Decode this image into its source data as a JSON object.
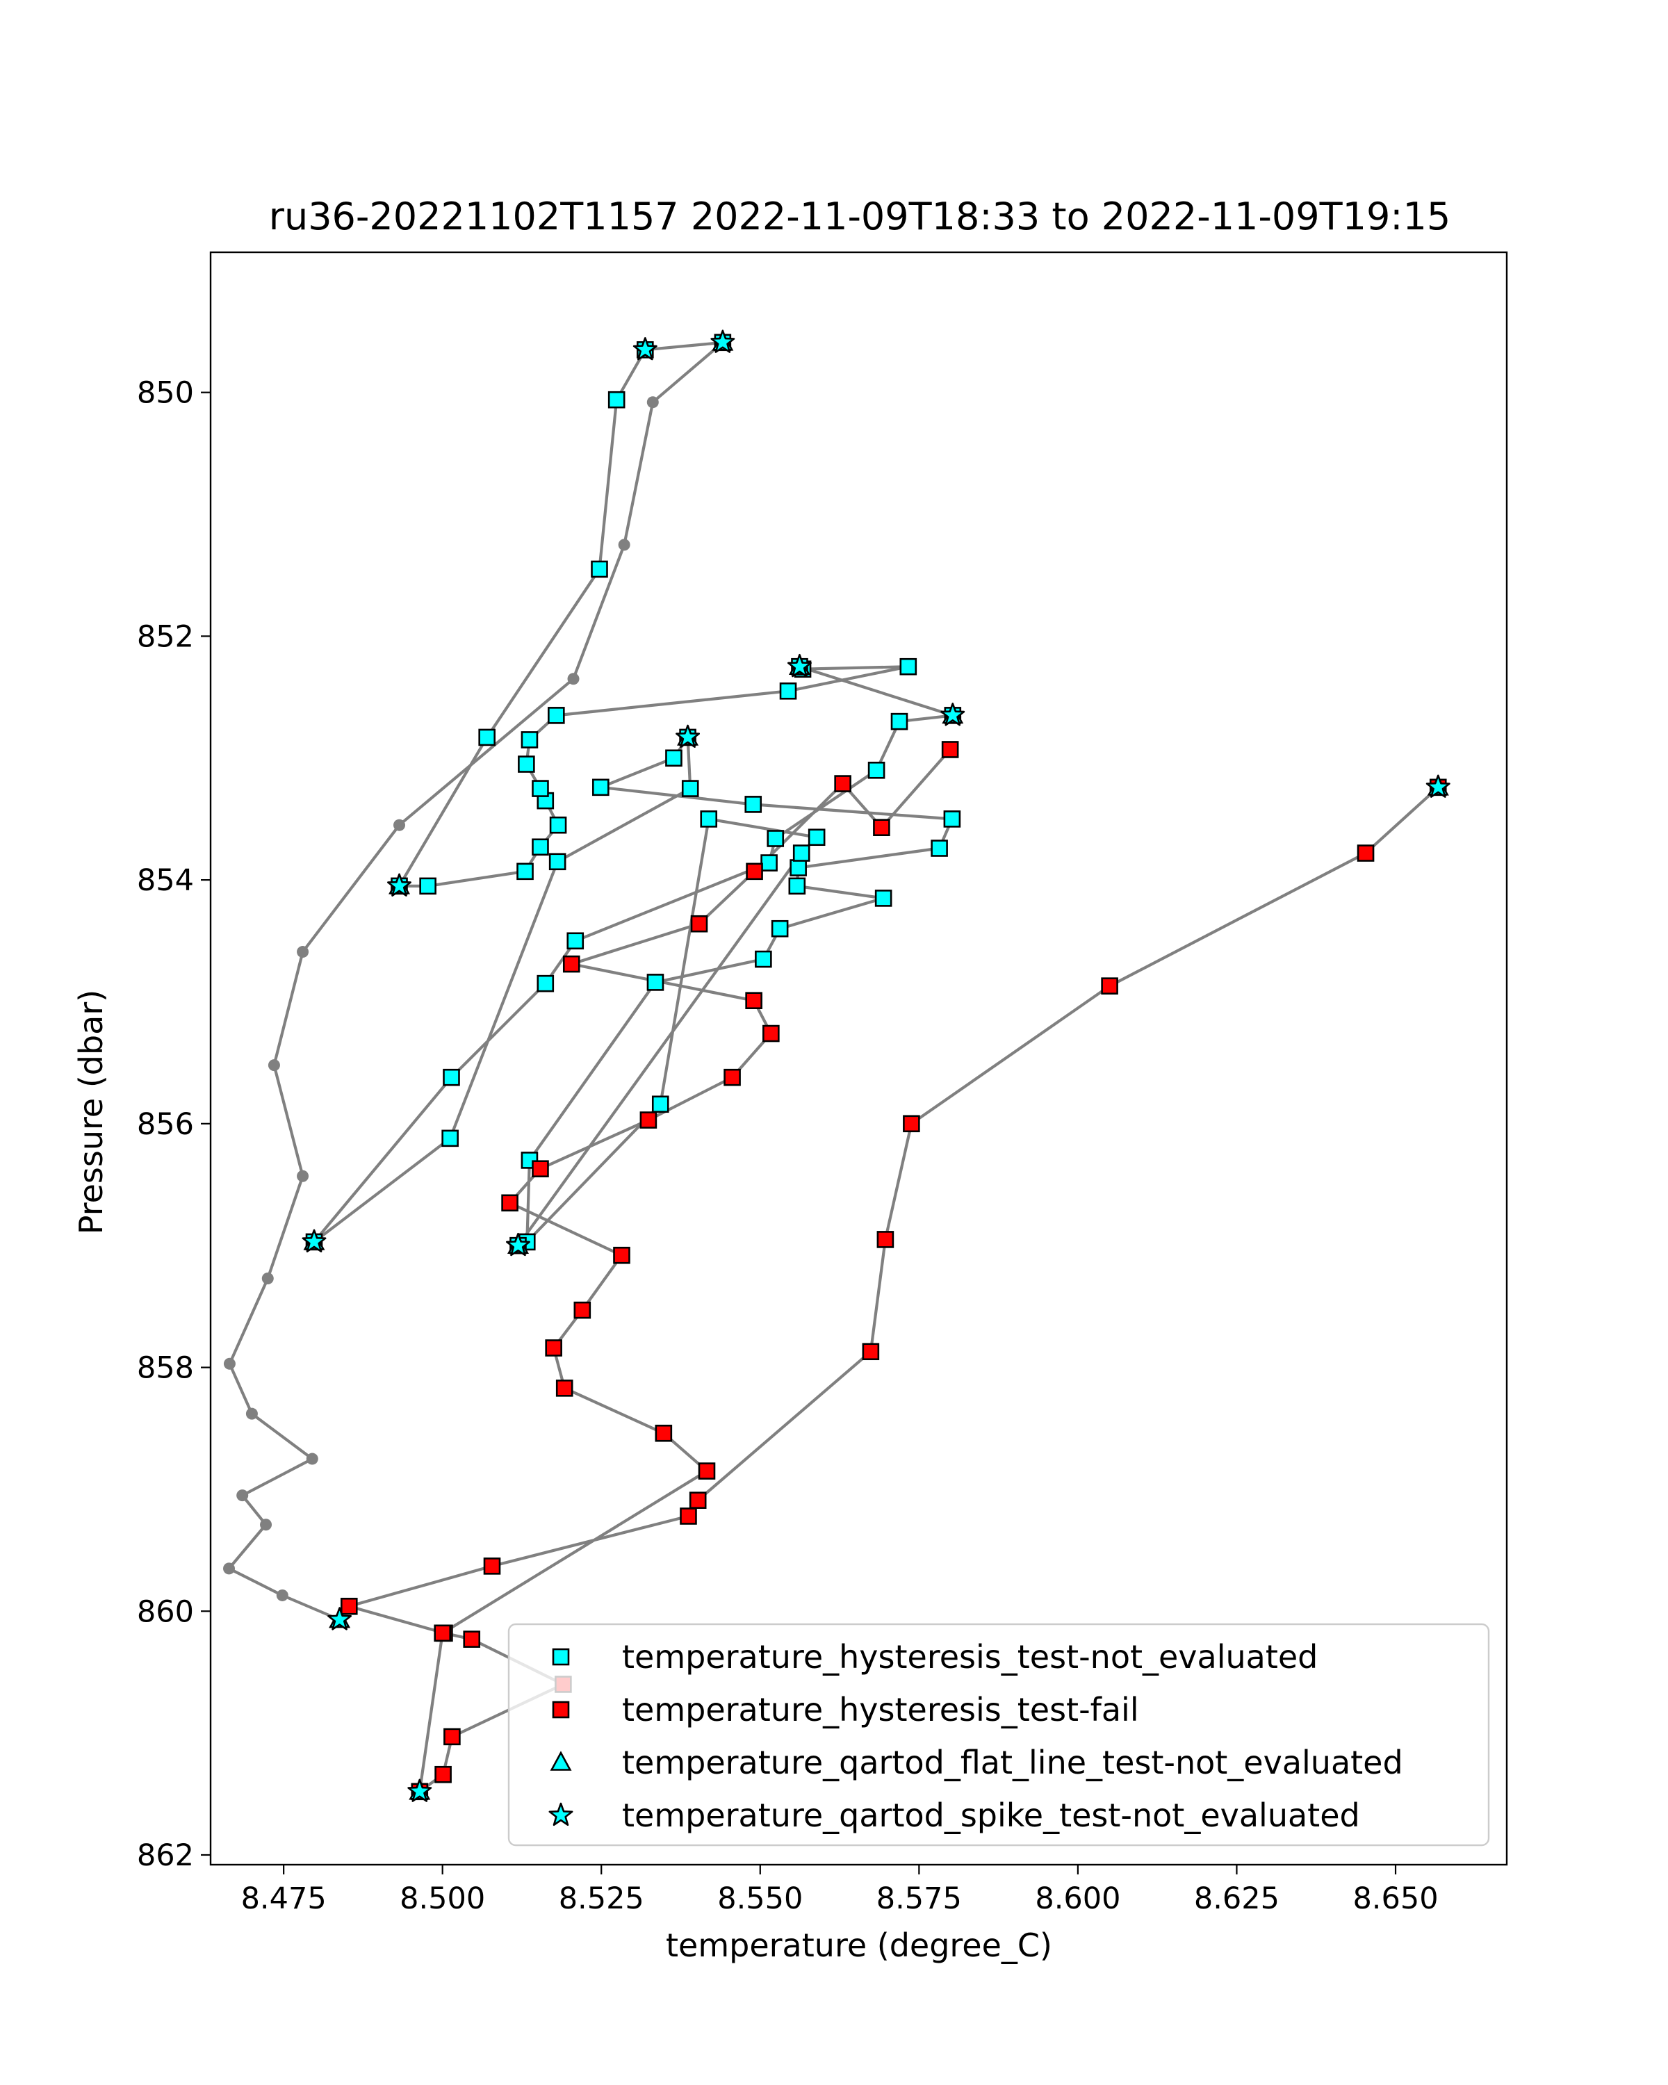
{
  "chart_data": {
    "type": "scatter",
    "title": "ru36-20221102T1157 2022-11-09T18:33 to 2022-11-09T19:15",
    "xlabel": "temperature (degree_C)",
    "ylabel": "Pressure (dbar)",
    "xlim": [
      8.4635,
      8.6675
    ],
    "ylim": [
      862.08,
      848.85
    ],
    "y_inverted": true,
    "x_ticks": [
      8.475,
      8.5,
      8.525,
      8.55,
      8.575,
      8.6,
      8.625,
      8.65
    ],
    "x_tick_labels": [
      "8.475",
      "8.500",
      "8.525",
      "8.550",
      "8.575",
      "8.600",
      "8.625",
      "8.650"
    ],
    "y_ticks": [
      850,
      852,
      854,
      856,
      858,
      860,
      862
    ],
    "y_tick_labels": [
      "850",
      "852",
      "854",
      "856",
      "858",
      "860",
      "862"
    ],
    "grid": false,
    "legend_position": "lower-right",
    "colors": {
      "line": "#808080",
      "not_evaluated": "#00ffff",
      "fail": "#ff0000",
      "marker_edge": "#000000"
    },
    "trace": [
      [
        8.5441,
        849.59
      ],
      [
        8.5331,
        850.08
      ],
      [
        8.5286,
        851.25
      ],
      [
        8.5206,
        852.35
      ],
      [
        8.4932,
        853.55
      ],
      [
        8.478,
        854.59
      ],
      [
        8.4735,
        855.52
      ],
      [
        8.478,
        856.43
      ],
      [
        8.4725,
        857.27
      ],
      [
        8.4665,
        857.97
      ],
      [
        8.47,
        858.38
      ],
      [
        8.4795,
        858.75
      ],
      [
        8.4685,
        859.05
      ],
      [
        8.4722,
        859.29
      ],
      [
        8.4664,
        859.65
      ],
      [
        8.4748,
        859.87
      ],
      [
        8.4838,
        860.07
      ]
    ],
    "series": [
      {
        "name": "temperature_hysteresis_test-not_evaluated",
        "marker": "square",
        "color": "#00ffff",
        "connect": true,
        "points": [
          [
            8.5441,
            849.59
          ],
          [
            8.5319,
            849.65
          ],
          [
            8.5274,
            850.06
          ],
          [
            8.5247,
            851.45
          ],
          [
            8.507,
            852.83
          ],
          [
            8.4932,
            854.05
          ],
          [
            8.4977,
            854.05
          ],
          [
            8.513,
            853.93
          ],
          [
            8.5154,
            853.73
          ],
          [
            8.5182,
            853.55
          ],
          [
            8.5162,
            853.35
          ],
          [
            8.5154,
            853.25
          ],
          [
            8.5132,
            853.05
          ],
          [
            8.5137,
            852.85
          ],
          [
            8.5179,
            852.65
          ],
          [
            8.5544,
            852.45
          ],
          [
            8.5733,
            852.25
          ],
          [
            8.5567,
            852.27
          ],
          [
            8.5562,
            852.25
          ],
          [
            8.5803,
            852.65
          ],
          [
            8.5719,
            852.7
          ],
          [
            8.5683,
            853.1
          ],
          [
            8.5524,
            853.66
          ],
          [
            8.5514,
            853.86
          ],
          [
            8.5209,
            854.5
          ],
          [
            8.5162,
            854.85
          ],
          [
            8.5014,
            855.62
          ],
          [
            8.4798,
            856.97
          ],
          [
            8.5012,
            856.12
          ],
          [
            8.5181,
            853.85
          ],
          [
            8.539,
            853.25
          ],
          [
            8.5386,
            852.83
          ],
          [
            8.5364,
            853.0
          ],
          [
            8.5249,
            853.24
          ],
          [
            8.5489,
            853.38
          ],
          [
            8.5802,
            853.5
          ],
          [
            8.5782,
            853.74
          ],
          [
            8.556,
            853.9
          ],
          [
            8.5558,
            854.05
          ],
          [
            8.5694,
            854.15
          ],
          [
            8.5531,
            854.4
          ],
          [
            8.5505,
            854.65
          ],
          [
            8.5335,
            854.84
          ],
          [
            8.5137,
            856.3
          ],
          [
            8.5133,
            856.97
          ],
          [
            8.5343,
            855.84
          ],
          [
            8.5419,
            853.5
          ],
          [
            8.5589,
            853.65
          ],
          [
            8.5565,
            853.78
          ],
          [
            8.5119,
            857.0
          ]
        ]
      },
      {
        "name": "temperature_hysteresis_test-fail",
        "marker": "square",
        "color": "#ff0000",
        "connect": true,
        "points": [
          [
            8.6567,
            853.24
          ],
          [
            8.6453,
            853.78
          ],
          [
            8.605,
            854.87
          ],
          [
            8.5738,
            856.0
          ],
          [
            8.5697,
            856.95
          ],
          [
            8.5674,
            857.87
          ],
          [
            8.5402,
            859.09
          ],
          [
            8.5387,
            859.22
          ],
          [
            8.5078,
            859.63
          ],
          [
            8.4853,
            859.96
          ],
          [
            8.5003,
            860.18
          ],
          [
            8.5046,
            860.23
          ],
          [
            8.519,
            860.6
          ],
          [
            8.5015,
            861.03
          ],
          [
            8.5001,
            861.34
          ],
          [
            8.4964,
            861.48
          ],
          [
            8.5,
            860.18
          ],
          [
            8.5416,
            858.85
          ],
          [
            8.5348,
            858.54
          ],
          [
            8.5192,
            858.17
          ],
          [
            8.5175,
            857.84
          ],
          [
            8.522,
            857.53
          ],
          [
            8.5282,
            857.08
          ],
          [
            8.5106,
            856.65
          ],
          [
            8.5154,
            856.37
          ],
          [
            8.5324,
            855.97
          ],
          [
            8.5456,
            855.62
          ],
          [
            8.5517,
            855.26
          ],
          [
            8.549,
            854.99
          ],
          [
            8.5203,
            854.69
          ],
          [
            8.5404,
            854.36
          ],
          [
            8.5491,
            853.93
          ],
          [
            8.563,
            853.21
          ],
          [
            8.5691,
            853.57
          ],
          [
            8.5799,
            852.93
          ]
        ]
      },
      {
        "name": "temperature_qartod_flat_line_test-not_evaluated",
        "marker": "triangle",
        "color": "#00ffff",
        "connect": false,
        "points": [
          [
            8.5441,
            849.59
          ],
          [
            8.4932,
            854.05
          ],
          [
            8.4798,
            856.97
          ],
          [
            8.5119,
            857.0
          ],
          [
            8.4838,
            860.07
          ],
          [
            8.4964,
            861.48
          ],
          [
            8.5803,
            852.65
          ],
          [
            8.5562,
            852.25
          ],
          [
            8.5386,
            852.83
          ],
          [
            8.6567,
            853.24
          ]
        ]
      },
      {
        "name": "temperature_qartod_spike_test-not_evaluated",
        "marker": "star",
        "color": "#00ffff",
        "connect": false,
        "points": [
          [
            8.5441,
            849.59
          ],
          [
            8.5319,
            849.65
          ],
          [
            8.4932,
            854.05
          ],
          [
            8.4798,
            856.97
          ],
          [
            8.5119,
            857.0
          ],
          [
            8.4838,
            860.07
          ],
          [
            8.4964,
            861.48
          ],
          [
            8.5803,
            852.65
          ],
          [
            8.5562,
            852.25
          ],
          [
            8.5386,
            852.83
          ],
          [
            8.6567,
            853.24
          ]
        ]
      }
    ]
  }
}
